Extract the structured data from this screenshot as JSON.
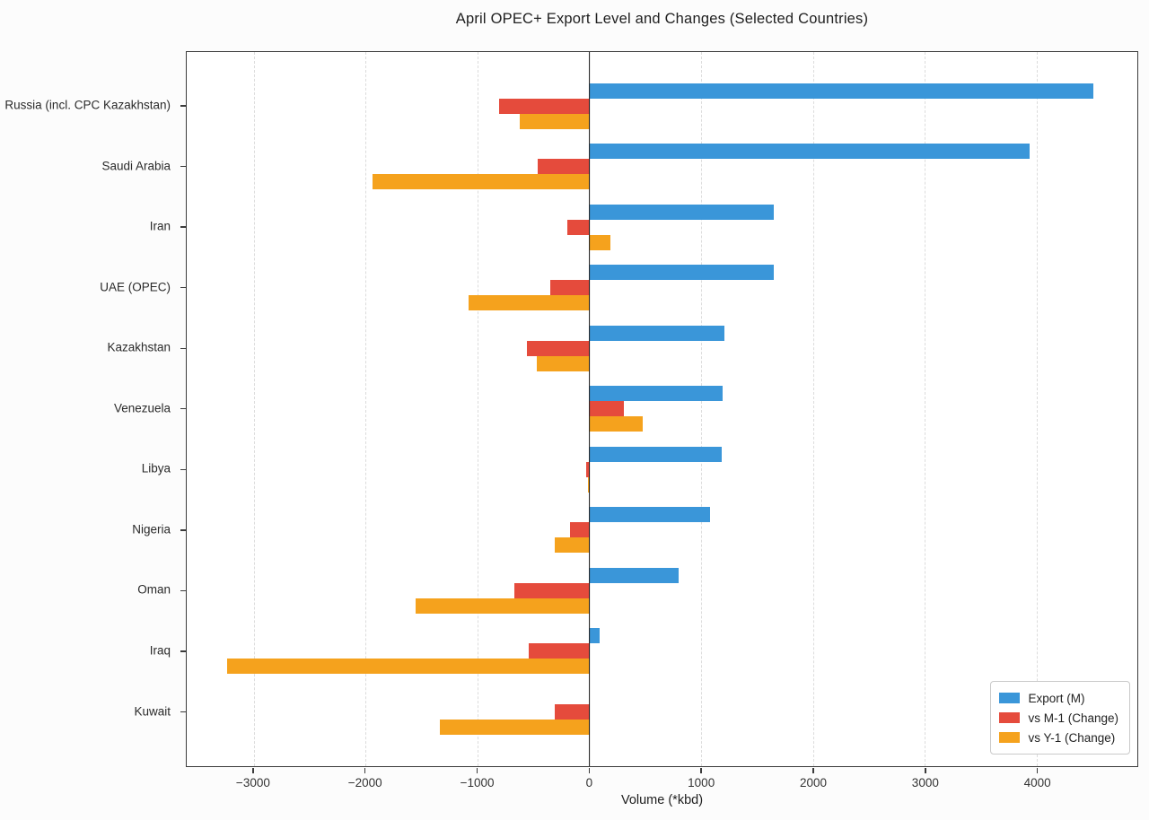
{
  "title": "April OPEC+ Export Level and Changes (Selected Countries)",
  "chart_data": {
    "type": "bar",
    "orientation": "horizontal",
    "title": "April OPEC+ Export Level and Changes (Selected Countries)",
    "xlabel": "Volume (*kbd)",
    "ylabel": "",
    "categories": [
      "Russia (incl. CPC Kazakhstan)",
      "Saudi Arabia",
      "Iran",
      "UAE (OPEC)",
      "Kazakhstan",
      "Venezuela",
      "Libya",
      "Nigeria",
      "Oman",
      "Iraq",
      "Kuwait"
    ],
    "series": [
      {
        "name": "Export (M)",
        "color": "#3A96D9",
        "values": [
          4510,
          3940,
          1650,
          1650,
          1210,
          1190,
          1180,
          1080,
          800,
          90,
          0
        ]
      },
      {
        "name": "vs M-1 (Change)",
        "color": "#E54B3C",
        "values": [
          -810,
          -460,
          -200,
          -350,
          -560,
          310,
          -25,
          -170,
          -670,
          -545,
          -310
        ]
      },
      {
        "name": "vs Y-1 (Change)",
        "color": "#F5A21D",
        "values": [
          -620,
          -1940,
          190,
          -1080,
          -470,
          480,
          -15,
          -310,
          -1550,
          -3240,
          -1340
        ]
      }
    ],
    "xlim": [
      -3600,
      4900
    ],
    "xticks": [
      -3000,
      -2000,
      -1000,
      0,
      1000,
      2000,
      3000,
      4000
    ],
    "grid": "vertical-dashed",
    "zero_line": true,
    "legend_position": "lower-right"
  }
}
